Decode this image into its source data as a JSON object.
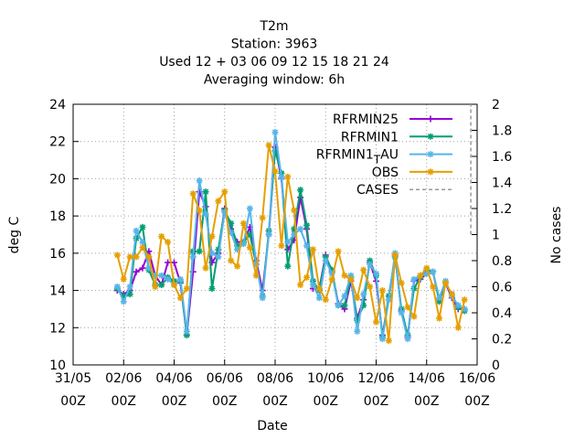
{
  "chart_data": {
    "type": "line",
    "title_lines": [
      "T2m",
      "Station:     3963",
      "Used  12 + 03 06 09 12 15 18 21 24",
      "Averaging window:  6h"
    ],
    "xlabel": "Date",
    "ylabel": "deg C",
    "y2label": "No cases",
    "xlim_days": [
      0,
      16
    ],
    "ylim": [
      10,
      24
    ],
    "y2lim": [
      0,
      2
    ],
    "yticks": [
      "10",
      "12",
      "14",
      "16",
      "18",
      "20",
      "22",
      "24"
    ],
    "y2ticks": [
      "0",
      "0.2",
      "0.4",
      "0.6",
      "0.8",
      "1",
      "1.2",
      "1.4",
      "1.6",
      "1.8",
      "2"
    ],
    "xticks": [
      {
        "day": 0,
        "date": "31/05",
        "hour": "00Z"
      },
      {
        "day": 2,
        "date": "02/06",
        "hour": "00Z"
      },
      {
        "day": 4,
        "date": "04/06",
        "hour": "00Z"
      },
      {
        "day": 6,
        "date": "06/06",
        "hour": "00Z"
      },
      {
        "day": 8,
        "date": "08/06",
        "hour": "00Z"
      },
      {
        "day": 10,
        "date": "10/06",
        "hour": "00Z"
      },
      {
        "day": 12,
        "date": "12/06",
        "hour": "00Z"
      },
      {
        "day": 14,
        "date": "14/06",
        "hour": "00Z"
      },
      {
        "day": 16,
        "date": "16/06",
        "hour": "00Z"
      }
    ],
    "grid": true,
    "legend_position": "top-right",
    "x_step_days": 0.25,
    "x_start_day": 1.75,
    "series": [
      {
        "name": "RFRMIN25",
        "color": "#9400d3",
        "marker": "plus",
        "values": [
          14.0,
          13.8,
          14.0,
          15.0,
          15.2,
          16.1,
          14.8,
          14.3,
          15.5,
          15.5,
          14.4,
          11.6,
          15.0,
          19.3,
          18.5,
          15.5,
          16.0,
          18.4,
          17.3,
          16.6,
          16.6,
          17.4,
          15.6,
          14.0,
          17.0,
          21.7,
          20.0,
          16.2,
          16.7,
          19.0,
          17.3,
          14.1,
          14.1,
          15.9,
          15.0,
          13.3,
          13.0,
          14.5,
          12.5,
          13.5,
          15.5,
          14.5,
          11.6,
          13.5,
          15.9,
          12.9,
          11.5,
          14.5,
          14.6,
          14.9,
          15.0,
          13.5,
          14.4,
          13.6,
          13.0,
          13.0
        ]
      },
      {
        "name": "RFRMIN1",
        "color": "#009e73",
        "marker": "star",
        "values": [
          14.1,
          13.7,
          13.8,
          16.8,
          17.4,
          15.1,
          14.3,
          14.3,
          14.7,
          14.5,
          14.5,
          11.6,
          16.1,
          16.1,
          19.3,
          14.1,
          16.2,
          18.3,
          17.6,
          16.4,
          16.6,
          17.0,
          15.4,
          13.7,
          17.2,
          21.5,
          20.3,
          15.3,
          17.3,
          19.4,
          17.5,
          14.5,
          14.0,
          15.8,
          15.1,
          13.2,
          13.2,
          14.7,
          12.4,
          13.2,
          15.6,
          14.8,
          11.5,
          13.7,
          15.8,
          13.0,
          11.6,
          14.1,
          14.7,
          15.1,
          15.0,
          13.4,
          14.4,
          13.8,
          13.1,
          12.9
        ]
      },
      {
        "name": "RFRMIN1_TAU",
        "color": "#56b4e9",
        "marker": "star",
        "values": [
          14.2,
          13.4,
          14.2,
          17.2,
          16.6,
          15.2,
          14.8,
          14.8,
          14.6,
          14.3,
          14.6,
          11.8,
          15.8,
          19.9,
          18.1,
          16.0,
          15.8,
          18.2,
          17.1,
          16.2,
          16.5,
          18.4,
          15.4,
          13.6,
          17.0,
          22.5,
          20.1,
          16.6,
          17.0,
          17.3,
          16.4,
          14.3,
          13.6,
          15.6,
          14.9,
          13.2,
          13.7,
          14.8,
          11.8,
          13.8,
          15.4,
          14.9,
          11.4,
          13.5,
          16.0,
          12.8,
          11.4,
          14.6,
          14.8,
          14.9,
          15.0,
          13.6,
          14.5,
          13.7,
          13.2,
          13.0
        ]
      },
      {
        "name": "OBS",
        "color": "#e69f00",
        "marker": "star",
        "values": [
          15.9,
          14.6,
          15.8,
          15.8,
          16.3,
          15.8,
          14.2,
          16.9,
          16.6,
          14.3,
          13.6,
          14.1,
          19.2,
          18.3,
          15.2,
          16.9,
          18.8,
          19.3,
          15.6,
          15.3,
          17.6,
          16.3,
          14.8,
          17.9,
          21.8,
          20.4,
          16.4,
          20.1,
          18.3,
          14.3,
          14.7,
          16.2,
          14.1,
          13.5,
          14.6,
          16.1,
          14.8,
          14.6,
          13.6,
          15.1,
          14.2,
          12.3,
          14.0,
          11.3,
          15.9,
          14.4,
          13.1,
          12.6,
          14.8,
          15.2,
          14.2,
          12.5,
          14.4,
          13.8,
          12.0,
          13.5
        ]
      }
    ],
    "cases": {
      "name": "CASES",
      "color": "#999999",
      "line_x_day": 15.75,
      "y2_from": 1.0,
      "y2_to": 2.0
    }
  }
}
